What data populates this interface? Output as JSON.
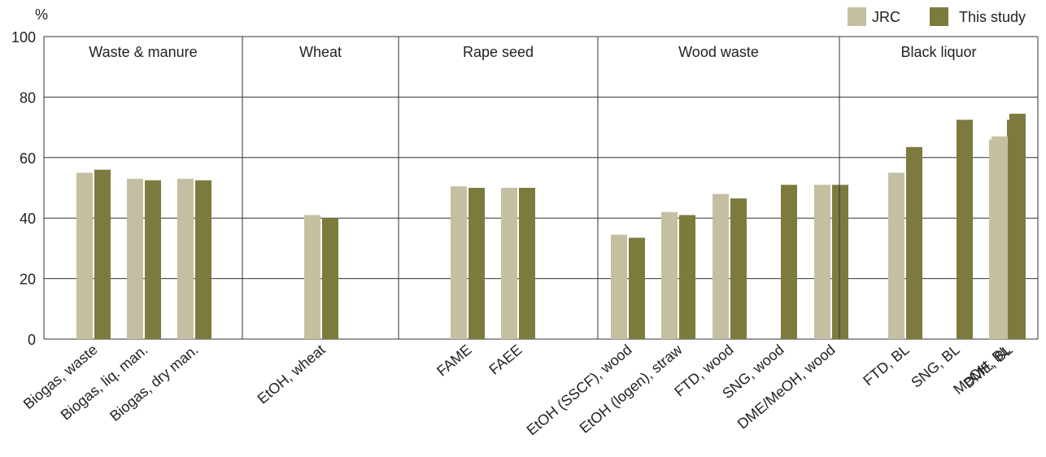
{
  "chart_data": {
    "type": "bar",
    "ylabel": "%",
    "ylim": [
      0,
      100
    ],
    "yticks": [
      0,
      20,
      40,
      60,
      80,
      100
    ],
    "grid": true,
    "legend_position": "top-right",
    "groups": [
      {
        "label": "Waste & manure",
        "categories": [
          "Biogas, waste",
          "Biogas, liq. man.",
          "Biogas, dry man."
        ]
      },
      {
        "label": "Wheat",
        "categories": [
          "EtOH, wheat"
        ]
      },
      {
        "label": "Rape seed",
        "categories": [
          "FAME",
          "FAEE"
        ]
      },
      {
        "label": "Wood waste",
        "categories": [
          "EtOH (SSCF), wood",
          "EtOH (logen), straw",
          "FTD, wood",
          "SNG, wood",
          "DME/MeOH, wood"
        ]
      },
      {
        "label": "Black liquor",
        "categories": [
          "FTD, BL",
          "SNG, BL",
          "MeOH, BL",
          "DME, BL"
        ]
      }
    ],
    "categories": [
      "Biogas, waste",
      "Biogas, liq. man.",
      "Biogas, dry man.",
      "EtOH, wheat",
      "FAME",
      "FAEE",
      "EtOH (SSCF), wood",
      "EtOH (logen), straw",
      "FTD, wood",
      "SNG, wood",
      "DME/MeOH, wood",
      "FTD, BL",
      "SNG, BL",
      "MeOH, BL",
      "DME, BL"
    ],
    "series": [
      {
        "name": "JRC",
        "color": "#c5bfa1",
        "values": [
          55,
          53,
          53,
          41,
          50.5,
          50,
          34.5,
          42,
          48,
          null,
          51,
          55,
          0,
          66,
          67
        ]
      },
      {
        "name": "This study",
        "color": "#7d7a3e",
        "values": [
          56,
          52.5,
          52.5,
          40,
          50,
          50,
          33.5,
          41,
          46.5,
          51,
          51,
          63.5,
          72.5,
          72.5,
          74.5
        ]
      }
    ]
  }
}
